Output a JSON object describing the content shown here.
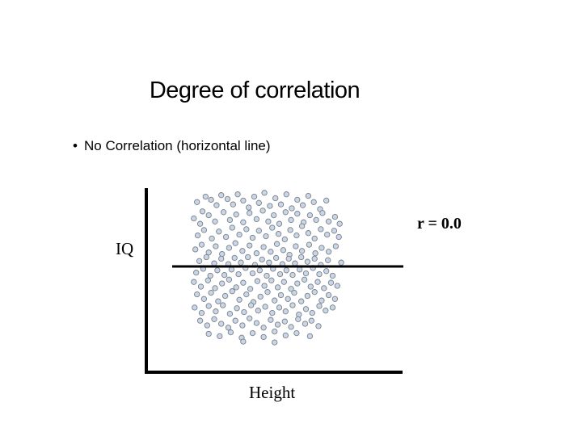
{
  "slide": {
    "title": "Degree of correlation",
    "bullet": "No Correlation (horizontal line)",
    "bullet_marker": "•"
  },
  "chart_data": {
    "type": "scatter",
    "title": "",
    "xlabel": "Height",
    "ylabel": "IQ",
    "annotation": "r = 0.0",
    "correlation": 0.0,
    "regression_line": {
      "slope": 0,
      "intercept": 0
    },
    "grid": false,
    "legend": "none",
    "xlim": [
      -1,
      1
    ],
    "ylim": [
      -1,
      1
    ],
    "point_fill": "#c9d6e8",
    "point_stroke": "#7a8088",
    "axis_color": "#000000",
    "points": [
      [
        -0.89,
        0.83
      ],
      [
        -0.78,
        0.9
      ],
      [
        -0.82,
        0.71
      ],
      [
        -0.71,
        0.86
      ],
      [
        -0.64,
        0.79
      ],
      [
        -0.58,
        0.92
      ],
      [
        -0.5,
        0.87
      ],
      [
        -0.43,
        0.8
      ],
      [
        -0.37,
        0.93
      ],
      [
        -0.3,
        0.85
      ],
      [
        -0.23,
        0.76
      ],
      [
        -0.16,
        0.9
      ],
      [
        -0.1,
        0.82
      ],
      [
        -0.03,
        0.95
      ],
      [
        0.04,
        0.78
      ],
      [
        0.11,
        0.88
      ],
      [
        0.18,
        0.8
      ],
      [
        0.25,
        0.93
      ],
      [
        0.32,
        0.75
      ],
      [
        0.39,
        0.86
      ],
      [
        0.46,
        0.79
      ],
      [
        0.53,
        0.91
      ],
      [
        0.6,
        0.83
      ],
      [
        0.68,
        0.74
      ],
      [
        0.76,
        0.85
      ],
      [
        -0.93,
        0.62
      ],
      [
        -0.85,
        0.55
      ],
      [
        -0.74,
        0.66
      ],
      [
        -0.66,
        0.58
      ],
      [
        -0.55,
        0.7
      ],
      [
        -0.47,
        0.6
      ],
      [
        -0.39,
        0.67
      ],
      [
        -0.3,
        0.57
      ],
      [
        -0.22,
        0.69
      ],
      [
        -0.13,
        0.61
      ],
      [
        -0.05,
        0.72
      ],
      [
        0.02,
        0.58
      ],
      [
        0.09,
        0.66
      ],
      [
        0.16,
        0.55
      ],
      [
        0.24,
        0.7
      ],
      [
        0.31,
        0.6
      ],
      [
        0.39,
        0.68
      ],
      [
        0.47,
        0.57
      ],
      [
        0.55,
        0.66
      ],
      [
        0.63,
        0.6
      ],
      [
        0.71,
        0.69
      ],
      [
        0.79,
        0.58
      ],
      [
        0.87,
        0.64
      ],
      [
        0.93,
        0.55
      ],
      [
        -0.88,
        0.4
      ],
      [
        -0.8,
        0.47
      ],
      [
        -0.7,
        0.36
      ],
      [
        -0.61,
        0.45
      ],
      [
        -0.52,
        0.38
      ],
      [
        -0.44,
        0.5
      ],
      [
        -0.35,
        0.41
      ],
      [
        -0.26,
        0.48
      ],
      [
        -0.18,
        0.37
      ],
      [
        -0.1,
        0.46
      ],
      [
        -0.01,
        0.39
      ],
      [
        0.07,
        0.5
      ],
      [
        0.15,
        0.42
      ],
      [
        0.23,
        0.35
      ],
      [
        0.3,
        0.47
      ],
      [
        0.38,
        0.4
      ],
      [
        0.45,
        0.52
      ],
      [
        0.53,
        0.43
      ],
      [
        0.61,
        0.36
      ],
      [
        0.69,
        0.48
      ],
      [
        0.77,
        0.41
      ],
      [
        0.86,
        0.46
      ],
      [
        0.92,
        0.38
      ],
      [
        -0.91,
        0.22
      ],
      [
        -0.83,
        0.28
      ],
      [
        -0.74,
        0.18
      ],
      [
        -0.65,
        0.26
      ],
      [
        -0.57,
        0.16
      ],
      [
        -0.48,
        0.24
      ],
      [
        -0.4,
        0.3
      ],
      [
        -0.31,
        0.2
      ],
      [
        -0.22,
        0.27
      ],
      [
        -0.13,
        0.17
      ],
      [
        -0.04,
        0.25
      ],
      [
        0.05,
        0.19
      ],
      [
        0.13,
        0.29
      ],
      [
        0.21,
        0.21
      ],
      [
        0.29,
        0.15
      ],
      [
        0.37,
        0.26
      ],
      [
        0.45,
        0.2
      ],
      [
        0.54,
        0.28
      ],
      [
        0.62,
        0.17
      ],
      [
        0.7,
        0.24
      ],
      [
        0.79,
        0.19
      ],
      [
        0.88,
        0.26
      ],
      [
        -0.86,
        0.07
      ],
      [
        -0.77,
        0.12
      ],
      [
        -0.67,
        0.04
      ],
      [
        -0.58,
        0.1
      ],
      [
        -0.49,
        0.03
      ],
      [
        -0.41,
        0.11
      ],
      [
        -0.33,
        0.05
      ],
      [
        -0.24,
        0.12
      ],
      [
        -0.15,
        0.02
      ],
      [
        -0.06,
        0.09
      ],
      [
        0.03,
        0.05
      ],
      [
        0.12,
        0.11
      ],
      [
        0.2,
        0.03
      ],
      [
        0.28,
        0.1
      ],
      [
        0.36,
        0.04
      ],
      [
        0.44,
        0.12
      ],
      [
        0.52,
        0.06
      ],
      [
        0.61,
        0.1
      ],
      [
        0.69,
        0.02
      ],
      [
        0.78,
        0.08
      ],
      [
        0.95,
        0.05
      ],
      [
        -0.9,
        -0.08
      ],
      [
        -0.81,
        -0.03
      ],
      [
        -0.72,
        -0.12
      ],
      [
        -0.63,
        -0.05
      ],
      [
        -0.54,
        -0.11
      ],
      [
        -0.45,
        -0.04
      ],
      [
        -0.36,
        -0.1
      ],
      [
        -0.27,
        -0.02
      ],
      [
        -0.18,
        -0.09
      ],
      [
        -0.09,
        -0.05
      ],
      [
        0.0,
        -0.12
      ],
      [
        0.08,
        -0.03
      ],
      [
        0.17,
        -0.1
      ],
      [
        0.25,
        -0.05
      ],
      [
        0.33,
        -0.11
      ],
      [
        0.42,
        -0.04
      ],
      [
        0.5,
        -0.09
      ],
      [
        0.59,
        -0.02
      ],
      [
        0.67,
        -0.1
      ],
      [
        0.76,
        -0.06
      ],
      [
        0.84,
        -0.12
      ],
      [
        -0.93,
        -0.2
      ],
      [
        -0.84,
        -0.26
      ],
      [
        -0.75,
        -0.18
      ],
      [
        -0.66,
        -0.28
      ],
      [
        -0.57,
        -0.22
      ],
      [
        -0.48,
        -0.17
      ],
      [
        -0.39,
        -0.27
      ],
      [
        -0.3,
        -0.21
      ],
      [
        -0.21,
        -0.29
      ],
      [
        -0.12,
        -0.19
      ],
      [
        -0.03,
        -0.25
      ],
      [
        0.06,
        -0.18
      ],
      [
        0.14,
        -0.27
      ],
      [
        0.22,
        -0.2
      ],
      [
        0.31,
        -0.29
      ],
      [
        0.39,
        -0.22
      ],
      [
        0.48,
        -0.17
      ],
      [
        0.56,
        -0.26
      ],
      [
        0.65,
        -0.2
      ],
      [
        0.73,
        -0.28
      ],
      [
        0.82,
        -0.21
      ],
      [
        0.9,
        -0.25
      ],
      [
        -0.89,
        -0.36
      ],
      [
        -0.8,
        -0.42
      ],
      [
        -0.71,
        -0.34
      ],
      [
        -0.62,
        -0.45
      ],
      [
        -0.53,
        -0.38
      ],
      [
        -0.44,
        -0.32
      ],
      [
        -0.35,
        -0.43
      ],
      [
        -0.26,
        -0.36
      ],
      [
        -0.17,
        -0.46
      ],
      [
        -0.08,
        -0.39
      ],
      [
        0.01,
        -0.33
      ],
      [
        0.1,
        -0.44
      ],
      [
        0.18,
        -0.37
      ],
      [
        0.27,
        -0.42
      ],
      [
        0.35,
        -0.34
      ],
      [
        0.44,
        -0.45
      ],
      [
        0.52,
        -0.38
      ],
      [
        0.61,
        -0.33
      ],
      [
        0.7,
        -0.44
      ],
      [
        0.79,
        -0.37
      ],
      [
        0.87,
        -0.42
      ],
      [
        -0.92,
        -0.53
      ],
      [
        -0.83,
        -0.6
      ],
      [
        -0.74,
        -0.51
      ],
      [
        -0.65,
        -0.58
      ],
      [
        -0.56,
        -0.5
      ],
      [
        -0.47,
        -0.61
      ],
      [
        -0.38,
        -0.54
      ],
      [
        -0.29,
        -0.59
      ],
      [
        -0.2,
        -0.5
      ],
      [
        -0.11,
        -0.57
      ],
      [
        -0.02,
        -0.52
      ],
      [
        0.07,
        -0.6
      ],
      [
        0.16,
        -0.53
      ],
      [
        0.24,
        -0.58
      ],
      [
        0.33,
        -0.5
      ],
      [
        0.41,
        -0.62
      ],
      [
        0.5,
        -0.55
      ],
      [
        0.58,
        -0.6
      ],
      [
        0.67,
        -0.51
      ],
      [
        0.75,
        -0.57
      ],
      [
        0.84,
        -0.53
      ],
      [
        -0.85,
        -0.7
      ],
      [
        -0.76,
        -0.76
      ],
      [
        -0.67,
        -0.68
      ],
      [
        -0.58,
        -0.74
      ],
      [
        -0.49,
        -0.79
      ],
      [
        -0.4,
        -0.7
      ],
      [
        -0.31,
        -0.76
      ],
      [
        -0.22,
        -0.67
      ],
      [
        -0.13,
        -0.73
      ],
      [
        -0.04,
        -0.79
      ],
      [
        0.05,
        -0.69
      ],
      [
        0.14,
        -0.75
      ],
      [
        0.23,
        -0.71
      ],
      [
        0.31,
        -0.78
      ],
      [
        0.4,
        -0.68
      ],
      [
        0.49,
        -0.74
      ],
      [
        0.57,
        -0.7
      ],
      [
        0.66,
        -0.77
      ],
      [
        -0.74,
        -0.87
      ],
      [
        -0.6,
        -0.9
      ],
      [
        -0.46,
        -0.85
      ],
      [
        -0.32,
        -0.92
      ],
      [
        -0.18,
        -0.86
      ],
      [
        -0.04,
        -0.91
      ],
      [
        0.1,
        -0.84
      ],
      [
        0.24,
        -0.89
      ],
      [
        0.38,
        -0.86
      ],
      [
        0.55,
        -0.9
      ],
      [
        0.1,
        -0.98
      ],
      [
        -0.3,
        -0.97
      ]
    ]
  }
}
